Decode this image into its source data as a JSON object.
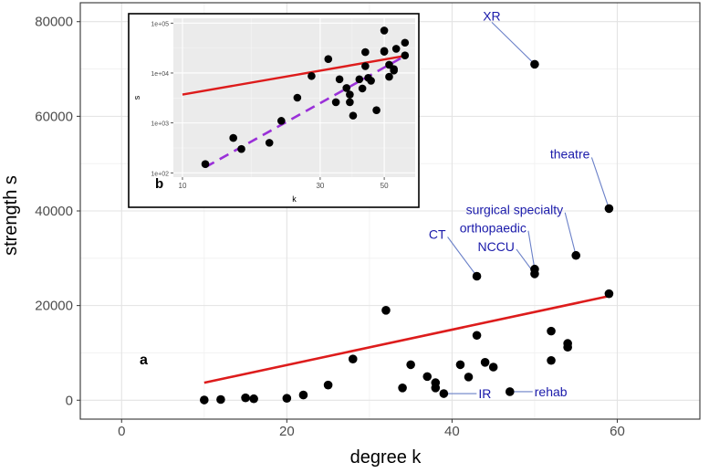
{
  "chart_data": [
    {
      "type": "scatter",
      "panel_label": "a",
      "xlabel": "degree k",
      "ylabel": "strength s",
      "xlim": [
        -5,
        70
      ],
      "ylim": [
        -4000,
        84000
      ],
      "x_ticks": [
        0,
        20,
        40,
        60
      ],
      "y_ticks": [
        0,
        20000,
        40000,
        60000,
        80000
      ],
      "x_tick_labels": [
        "0",
        "20",
        "40",
        "60"
      ],
      "y_tick_labels": [
        "0",
        "20000",
        "40000",
        "60000",
        "80000"
      ],
      "grid": true,
      "points": [
        {
          "x": 10,
          "y": 50
        },
        {
          "x": 12,
          "y": 150
        },
        {
          "x": 15,
          "y": 500
        },
        {
          "x": 16,
          "y": 300
        },
        {
          "x": 20,
          "y": 400
        },
        {
          "x": 22,
          "y": 1100
        },
        {
          "x": 25,
          "y": 3200
        },
        {
          "x": 28,
          "y": 8700
        },
        {
          "x": 32,
          "y": 19000
        },
        {
          "x": 34,
          "y": 2600
        },
        {
          "x": 35,
          "y": 7500
        },
        {
          "x": 37,
          "y": 5000
        },
        {
          "x": 38,
          "y": 3700
        },
        {
          "x": 38,
          "y": 2600
        },
        {
          "x": 39,
          "y": 1400,
          "label": "IR"
        },
        {
          "x": 41,
          "y": 7500
        },
        {
          "x": 42,
          "y": 4900
        },
        {
          "x": 43,
          "y": 13700
        },
        {
          "x": 43,
          "y": 26200,
          "label": "CT"
        },
        {
          "x": 44,
          "y": 8000
        },
        {
          "x": 45,
          "y": 7000
        },
        {
          "x": 47,
          "y": 1800,
          "label": "rehab"
        },
        {
          "x": 50,
          "y": 71000,
          "label": "XR"
        },
        {
          "x": 50,
          "y": 27700,
          "label": "orthopaedic"
        },
        {
          "x": 50,
          "y": 26700,
          "label": "NCCU"
        },
        {
          "x": 52,
          "y": 14600
        },
        {
          "x": 52,
          "y": 8400
        },
        {
          "x": 54,
          "y": 12000
        },
        {
          "x": 54,
          "y": 11200
        },
        {
          "x": 55,
          "y": 30600,
          "label": "surgical specialty"
        },
        {
          "x": 59,
          "y": 40500,
          "label": "theatre"
        },
        {
          "x": 59,
          "y": 22500
        }
      ],
      "fit_line": {
        "x": [
          10,
          59
        ],
        "y": [
          3700,
          22000
        ],
        "color": "#dd1c1c"
      },
      "label_color": "#1a1aaa",
      "point_color": "#000000"
    },
    {
      "type": "scatter",
      "panel_label": "b",
      "scale": "log-log",
      "xlabel": "k",
      "ylabel": "s",
      "x_ticks": [
        10,
        30,
        50
      ],
      "x_tick_labels": [
        "10",
        "30",
        "50"
      ],
      "y_ticks": [
        100,
        1000,
        10000,
        100000
      ],
      "y_tick_labels": [
        "1e+02",
        "1e+03",
        "1e+04",
        "1e+05"
      ],
      "grid": true,
      "points": [
        {
          "x": 12,
          "y": 150
        },
        {
          "x": 15,
          "y": 500
        },
        {
          "x": 16,
          "y": 300
        },
        {
          "x": 20,
          "y": 400
        },
        {
          "x": 22,
          "y": 1100
        },
        {
          "x": 25,
          "y": 3200
        },
        {
          "x": 28,
          "y": 8700
        },
        {
          "x": 32,
          "y": 19000
        },
        {
          "x": 34,
          "y": 2600
        },
        {
          "x": 35,
          "y": 7500
        },
        {
          "x": 37,
          "y": 5000
        },
        {
          "x": 38,
          "y": 3700
        },
        {
          "x": 38,
          "y": 2600
        },
        {
          "x": 39,
          "y": 1400
        },
        {
          "x": 41,
          "y": 7500
        },
        {
          "x": 42,
          "y": 4900
        },
        {
          "x": 43,
          "y": 13700
        },
        {
          "x": 43,
          "y": 26200
        },
        {
          "x": 44,
          "y": 8000
        },
        {
          "x": 45,
          "y": 7000
        },
        {
          "x": 47,
          "y": 1800
        },
        {
          "x": 50,
          "y": 71000
        },
        {
          "x": 50,
          "y": 27700
        },
        {
          "x": 50,
          "y": 26700
        },
        {
          "x": 52,
          "y": 14600
        },
        {
          "x": 52,
          "y": 8400
        },
        {
          "x": 54,
          "y": 12000
        },
        {
          "x": 54,
          "y": 11200
        },
        {
          "x": 55,
          "y": 30600
        },
        {
          "x": 59,
          "y": 40500
        },
        {
          "x": 59,
          "y": 22500
        }
      ],
      "fit_line_linear": {
        "x": [
          10,
          59
        ],
        "y": [
          3700,
          22000
        ],
        "color": "#dd1c1c",
        "style": "solid"
      },
      "fit_line_powerlaw": {
        "x": [
          12,
          59
        ],
        "y": [
          130,
          22000
        ],
        "color": "#9a30d8",
        "style": "dashed"
      }
    }
  ]
}
